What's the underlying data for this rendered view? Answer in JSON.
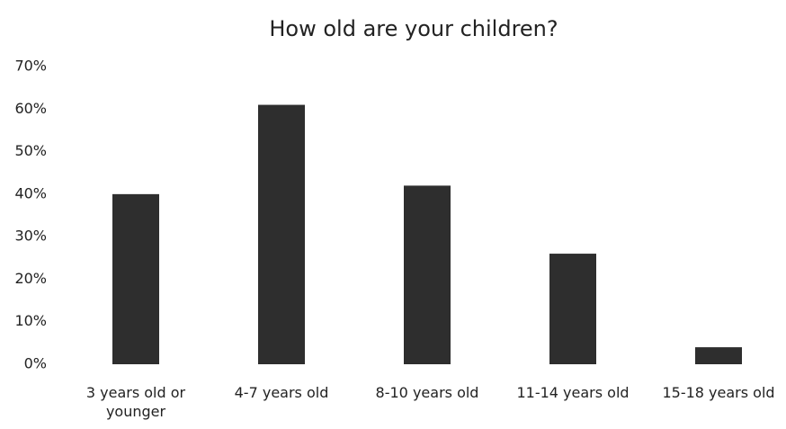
{
  "chart_data": {
    "type": "bar",
    "title": "How old are your children?",
    "categories": [
      "3 years old or younger",
      "4-7 years old",
      "8-10 years old",
      "11-14 years old",
      "15-18 years old"
    ],
    "values": [
      40,
      61,
      42,
      26,
      4
    ],
    "color": "#2e2e2e",
    "ylim": [
      0,
      70
    ],
    "yticks": [
      {
        "value": 0,
        "label": "0%"
      },
      {
        "value": 10,
        "label": "10%"
      },
      {
        "value": 20,
        "label": "20%"
      },
      {
        "value": 30,
        "label": "30%"
      },
      {
        "value": 40,
        "label": "40%"
      },
      {
        "value": 50,
        "label": "50%"
      },
      {
        "value": 60,
        "label": "60%"
      },
      {
        "value": 70,
        "label": "70%"
      }
    ],
    "grid": false
  }
}
